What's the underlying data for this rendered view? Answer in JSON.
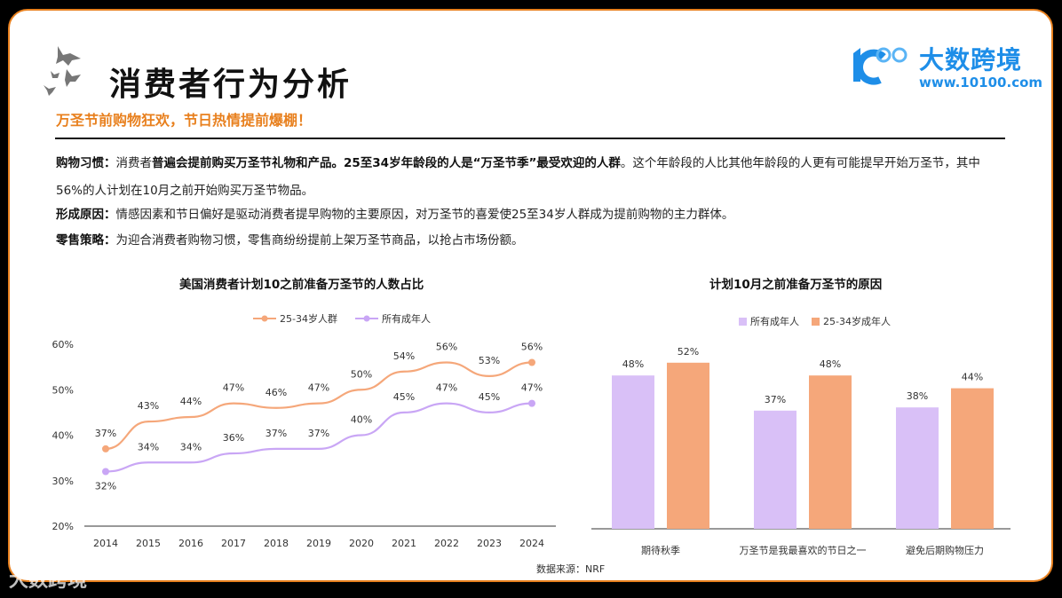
{
  "header": {
    "title": "消费者行为分析",
    "subtitle": "万圣节前购物狂欢，节日热情提前爆棚！",
    "logo_brand": "大数跨境",
    "logo_url": "www.10100.com",
    "watermark": "大数跨境"
  },
  "paragraphs": [
    {
      "label": "购物习惯：",
      "text1": "消费者",
      "bold": "普遍会提前购买万圣节礼物和产品。25至34岁年龄段的人是“万圣节季”最受欢迎的人群",
      "text2": "。这个年龄段的人比其他年龄段的人更有可能提早开始万圣节，其中56%的人计划在10月之前开始购买万圣节物品。"
    },
    {
      "label": "形成原因：",
      "text": "情感因素和节日偏好是驱动消费者提早购物的主要原因，对万圣节的喜爱使25至34岁人群成为提前购物的主力群体。"
    },
    {
      "label": "零售策略：",
      "text": "为迎合消费者购物习惯，零售商纷纷提前上架万圣节商品，以抢占市场份额。"
    }
  ],
  "source": "数据来源：NRF",
  "colors": {
    "orange": "#f5a77a",
    "purple": "#d9c0f7",
    "line_orange": "#f5a77a",
    "line_purple": "#c9a6f5",
    "accent": "#e8801e"
  },
  "chart_data": [
    {
      "type": "line",
      "title": "美国消费者计划10之前准备万圣节的人数占比",
      "categories": [
        "2014",
        "2015",
        "2016",
        "2017",
        "2018",
        "2019",
        "2020",
        "2021",
        "2022",
        "2023",
        "2024"
      ],
      "series": [
        {
          "name": "25-34岁人群",
          "values": [
            37,
            43,
            44,
            47,
            46,
            47,
            50,
            54,
            56,
            53,
            56
          ]
        },
        {
          "name": "所有成年人",
          "values": [
            32,
            34,
            34,
            36,
            37,
            37,
            40,
            45,
            47,
            45,
            47
          ]
        }
      ],
      "yticks": [
        "20%",
        "30%",
        "40%",
        "50%",
        "60%"
      ],
      "ylim": [
        20,
        60
      ],
      "legend": "top"
    },
    {
      "type": "bar",
      "title": "计划10月之前准备万圣节的原因",
      "categories": [
        "期待秋季",
        "万圣节是我最喜欢的节日之一",
        "避免后期购物压力"
      ],
      "series": [
        {
          "name": "所有成年人",
          "values": [
            48,
            37,
            38
          ]
        },
        {
          "name": "25-34岁成年人",
          "values": [
            52,
            48,
            44
          ]
        }
      ],
      "ylim": [
        0,
        60
      ],
      "legend": "top"
    }
  ]
}
